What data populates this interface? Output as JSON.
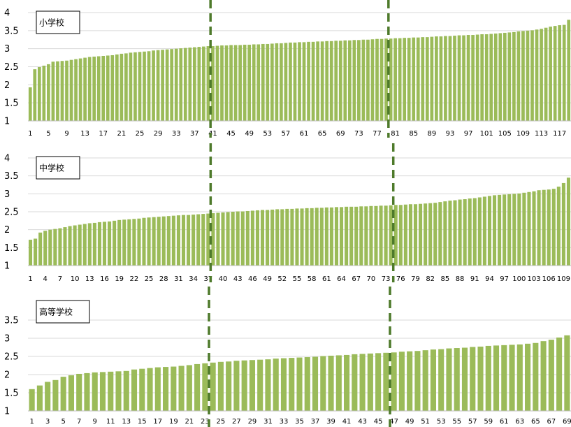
{
  "chart_data": [
    {
      "type": "bar",
      "label": "小学校",
      "n": 119,
      "ylim": [
        1,
        4
      ],
      "yticks": [
        1,
        1.5,
        2,
        2.5,
        3,
        3.5,
        4
      ],
      "xtick_start": 1,
      "xtick_step": 4,
      "dividers_after": [
        40,
        79
      ],
      "values": [
        1.93,
        2.43,
        2.49,
        2.53,
        2.57,
        2.64,
        2.65,
        2.66,
        2.67,
        2.69,
        2.71,
        2.73,
        2.75,
        2.77,
        2.78,
        2.79,
        2.8,
        2.81,
        2.82,
        2.84,
        2.86,
        2.87,
        2.89,
        2.9,
        2.91,
        2.92,
        2.93,
        2.95,
        2.96,
        2.97,
        2.98,
        2.99,
        3.0,
        3.01,
        3.02,
        3.03,
        3.04,
        3.05,
        3.06,
        3.07,
        3.07,
        3.08,
        3.09,
        3.09,
        3.1,
        3.1,
        3.1,
        3.11,
        3.11,
        3.12,
        3.12,
        3.13,
        3.13,
        3.14,
        3.15,
        3.15,
        3.16,
        3.17,
        3.17,
        3.18,
        3.18,
        3.19,
        3.19,
        3.2,
        3.2,
        3.21,
        3.21,
        3.22,
        3.22,
        3.23,
        3.23,
        3.24,
        3.24,
        3.25,
        3.25,
        3.26,
        3.27,
        3.27,
        3.28,
        3.28,
        3.29,
        3.29,
        3.3,
        3.3,
        3.31,
        3.31,
        3.32,
        3.32,
        3.33,
        3.34,
        3.34,
        3.35,
        3.35,
        3.36,
        3.37,
        3.37,
        3.38,
        3.38,
        3.39,
        3.4,
        3.4,
        3.41,
        3.42,
        3.43,
        3.44,
        3.45,
        3.46,
        3.48,
        3.49,
        3.5,
        3.51,
        3.53,
        3.55,
        3.58,
        3.61,
        3.63,
        3.65,
        3.66,
        3.8
      ]
    },
    {
      "type": "bar",
      "label": "中学校",
      "n": 110,
      "ylim": [
        1,
        4
      ],
      "yticks": [
        1,
        1.5,
        2,
        2.5,
        3,
        3.5,
        4
      ],
      "xtick_start": 1,
      "xtick_step": 3,
      "dividers_after": [
        37,
        74
      ],
      "values": [
        1.72,
        1.75,
        1.92,
        1.97,
        2.0,
        2.02,
        2.04,
        2.07,
        2.1,
        2.12,
        2.14,
        2.16,
        2.18,
        2.19,
        2.21,
        2.22,
        2.23,
        2.25,
        2.27,
        2.28,
        2.29,
        2.3,
        2.31,
        2.33,
        2.34,
        2.35,
        2.36,
        2.37,
        2.38,
        2.39,
        2.4,
        2.41,
        2.41,
        2.42,
        2.43,
        2.44,
        2.45,
        2.46,
        2.47,
        2.48,
        2.49,
        2.5,
        2.51,
        2.51,
        2.52,
        2.53,
        2.54,
        2.55,
        2.55,
        2.56,
        2.57,
        2.57,
        2.58,
        2.58,
        2.59,
        2.59,
        2.6,
        2.6,
        2.61,
        2.61,
        2.62,
        2.62,
        2.63,
        2.63,
        2.64,
        2.64,
        2.64,
        2.65,
        2.65,
        2.66,
        2.66,
        2.67,
        2.67,
        2.68,
        2.69,
        2.69,
        2.7,
        2.71,
        2.71,
        2.72,
        2.73,
        2.74,
        2.75,
        2.77,
        2.79,
        2.81,
        2.82,
        2.84,
        2.85,
        2.87,
        2.88,
        2.9,
        2.92,
        2.94,
        2.96,
        2.97,
        2.98,
        2.99,
        3.0,
        3.01,
        3.03,
        3.05,
        3.07,
        3.1,
        3.11,
        3.12,
        3.14,
        3.2,
        3.3,
        3.45
      ]
    },
    {
      "type": "bar",
      "label": "高等学校",
      "n": 69,
      "ylim": [
        1,
        4
      ],
      "yticks": [
        1,
        1.5,
        2,
        2.5,
        3,
        3.5
      ],
      "xtick_start": 1,
      "xtick_step": 2,
      "dividers_after": [
        23,
        46
      ],
      "values": [
        1.6,
        1.7,
        1.8,
        1.85,
        1.94,
        1.98,
        2.02,
        2.04,
        2.06,
        2.07,
        2.08,
        2.09,
        2.1,
        2.14,
        2.16,
        2.18,
        2.2,
        2.21,
        2.22,
        2.24,
        2.26,
        2.29,
        2.31,
        2.33,
        2.35,
        2.36,
        2.38,
        2.39,
        2.4,
        2.41,
        2.42,
        2.44,
        2.45,
        2.46,
        2.47,
        2.48,
        2.49,
        2.51,
        2.52,
        2.53,
        2.54,
        2.56,
        2.57,
        2.58,
        2.59,
        2.6,
        2.61,
        2.63,
        2.64,
        2.65,
        2.67,
        2.69,
        2.7,
        2.72,
        2.73,
        2.74,
        2.76,
        2.77,
        2.79,
        2.8,
        2.81,
        2.82,
        2.83,
        2.85,
        2.87,
        2.92,
        2.96,
        3.02,
        3.08
      ]
    }
  ]
}
